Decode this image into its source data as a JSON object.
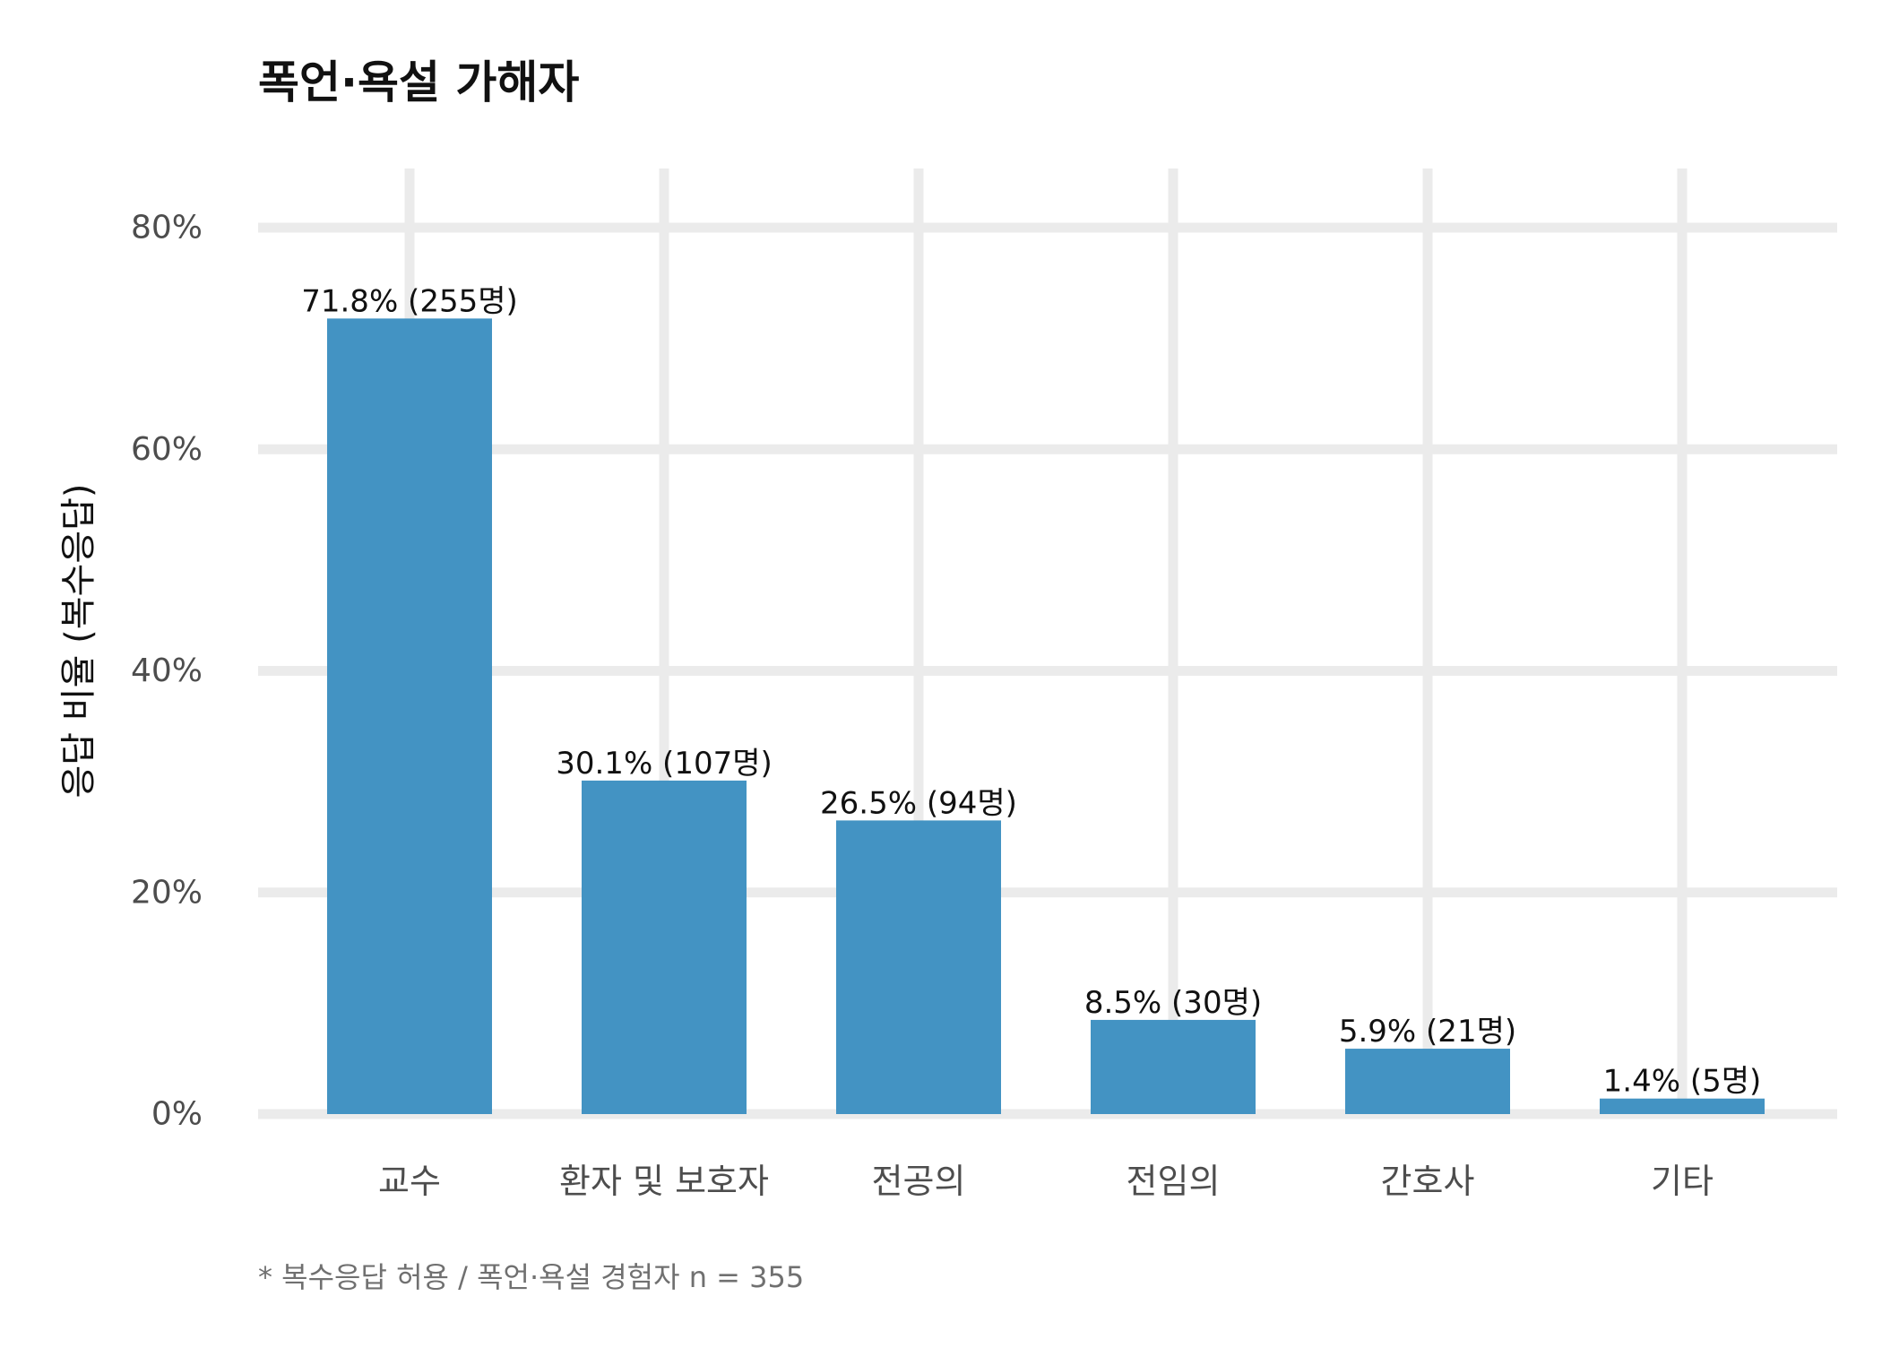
{
  "chart_data": {
    "type": "bar",
    "title": "폭언·욕설 가해자",
    "ylabel": "응답 비율 (복수응답)",
    "xlabel": "",
    "caption": "* 복수응답 허용 / 폭언·욕설 경험자 n = 355",
    "categories": [
      "교수",
      "환자 및 보호자",
      "전공의",
      "전임의",
      "간호사",
      "기타"
    ],
    "values": [
      71.8,
      30.1,
      26.5,
      8.5,
      5.9,
      1.4
    ],
    "data_labels": [
      "71.8% (255명)",
      "30.1% (107명)",
      "26.5% (94명)",
      "8.5% (30명)",
      "5.9% (21명)",
      "1.4% (5명)"
    ],
    "y_ticks": [
      0,
      20,
      40,
      60,
      80
    ],
    "y_tick_labels": [
      "0%",
      "20%",
      "40%",
      "60%",
      "80%"
    ],
    "ylim": [
      0,
      80
    ],
    "grid": true,
    "bar_color": "#4393c3",
    "grid_color": "#ebebeb"
  }
}
